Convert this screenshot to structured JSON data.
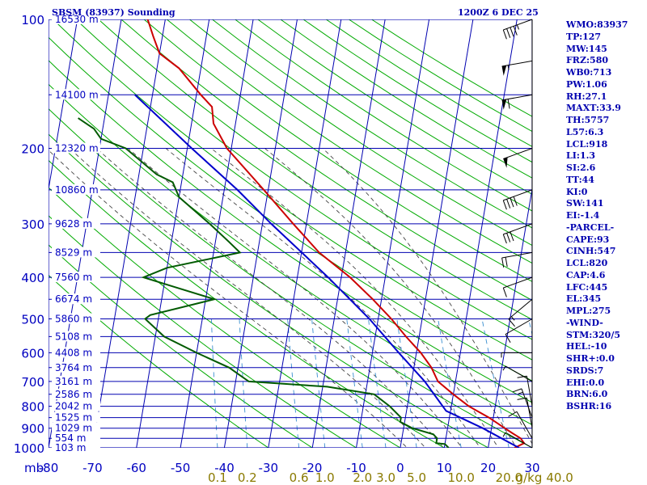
{
  "header": {
    "title": "SBSM (83937) Sounding",
    "time": "1200Z  6 DEC 25"
  },
  "stats": [
    "WMO:83937",
    "TP:127",
    "MW:145",
    "FRZ:580",
    "WB0:713",
    "PW:1.06",
    "RH:27.1",
    "MAXT:33.9",
    "TH:5757",
    "L57:6.3",
    "LCL:918",
    "LI:1.3",
    "SI:2.6",
    "TT:44",
    "KI:0",
    "SW:141",
    "EI:-1.4",
    "-PARCEL-",
    "CAPE:93",
    "CINH:547",
    "LCL:820",
    "CAP:4.6",
    "LFC:445",
    "EL:345",
    "MPL:275",
    "-WIND-",
    "STM:320/5",
    "HEL:-10",
    "SHR+:0.0",
    "SRDS:7",
    "EHI:0.0",
    "BRN:6.0",
    "BSHR:16"
  ],
  "chart_data": {
    "type": "line",
    "subtype": "skew-t log-p",
    "title": "SBSM (83937) Sounding",
    "x_unit_label": "mb",
    "pressure_levels": [
      100,
      200,
      300,
      400,
      500,
      600,
      700,
      800,
      900,
      1000
    ],
    "temperature_ticks": [
      -80,
      -70,
      -60,
      -50,
      -40,
      -30,
      -20,
      -10,
      0,
      10,
      20,
      30
    ],
    "mixing_ratio_labels": [
      "0.1",
      "0.2",
      "0.6",
      "1.0",
      "2.0",
      "3.0",
      "5.0",
      "10.0",
      "20.0",
      "40.0"
    ],
    "mixing_ratio_unit": "g/kg",
    "height_labels": [
      {
        "p": 100,
        "label": "16530 m"
      },
      {
        "p": 150,
        "label": "14100 m"
      },
      {
        "p": 200,
        "label": "12320 m"
      },
      {
        "p": 250,
        "label": "10860 m"
      },
      {
        "p": 300,
        "label": "9628 m"
      },
      {
        "p": 350,
        "label": "8529 m"
      },
      {
        "p": 400,
        "label": "7560 m"
      },
      {
        "p": 450,
        "label": "6674 m"
      },
      {
        "p": 500,
        "label": "5860 m"
      },
      {
        "p": 550,
        "label": "5108 m"
      },
      {
        "p": 600,
        "label": "4408 m"
      },
      {
        "p": 650,
        "label": "3764 m"
      },
      {
        "p": 700,
        "label": "3161 m"
      },
      {
        "p": 750,
        "label": "2586 m"
      },
      {
        "p": 800,
        "label": "2042 m"
      },
      {
        "p": 850,
        "label": "1525 m"
      },
      {
        "p": 900,
        "label": "1029 m"
      },
      {
        "p": 950,
        "label": "554 m"
      },
      {
        "p": 1000,
        "label": "103 m"
      }
    ],
    "series": [
      {
        "name": "Temperature",
        "color": "#cc0000",
        "points": [
          {
            "p": 1000,
            "t": 26
          },
          {
            "p": 975,
            "t": 28
          },
          {
            "p": 950,
            "t": 27
          },
          {
            "p": 925,
            "t": 25
          },
          {
            "p": 900,
            "t": 23
          },
          {
            "p": 850,
            "t": 19
          },
          {
            "p": 800,
            "t": 14
          },
          {
            "p": 750,
            "t": 10
          },
          {
            "p": 700,
            "t": 6
          },
          {
            "p": 650,
            "t": 4
          },
          {
            "p": 600,
            "t": 1
          },
          {
            "p": 550,
            "t": -3
          },
          {
            "p": 500,
            "t": -7
          },
          {
            "p": 450,
            "t": -12
          },
          {
            "p": 400,
            "t": -18
          },
          {
            "p": 350,
            "t": -26
          },
          {
            "p": 300,
            "t": -33
          },
          {
            "p": 250,
            "t": -41
          },
          {
            "p": 200,
            "t": -51
          },
          {
            "p": 175,
            "t": -55
          },
          {
            "p": 160,
            "t": -56
          },
          {
            "p": 150,
            "t": -59
          },
          {
            "p": 130,
            "t": -65
          },
          {
            "p": 120,
            "t": -70
          },
          {
            "p": 110,
            "t": -72
          },
          {
            "p": 100,
            "t": -74
          }
        ]
      },
      {
        "name": "Dewpoint",
        "color": "#005a00",
        "points": [
          {
            "p": 1000,
            "t": 11
          },
          {
            "p": 980,
            "t": 10
          },
          {
            "p": 975,
            "t": 8
          },
          {
            "p": 950,
            "t": 8
          },
          {
            "p": 930,
            "t": 7
          },
          {
            "p": 900,
            "t": 2
          },
          {
            "p": 870,
            "t": -1
          },
          {
            "p": 850,
            "t": -1
          },
          {
            "p": 800,
            "t": -4
          },
          {
            "p": 750,
            "t": -8
          },
          {
            "p": 720,
            "t": -19
          },
          {
            "p": 700,
            "t": -37
          },
          {
            "p": 680,
            "t": -39
          },
          {
            "p": 650,
            "t": -42
          },
          {
            "p": 600,
            "t": -50
          },
          {
            "p": 550,
            "t": -58
          },
          {
            "p": 500,
            "t": -63
          },
          {
            "p": 490,
            "t": -62
          },
          {
            "p": 450,
            "t": -48
          },
          {
            "p": 420,
            "t": -58
          },
          {
            "p": 400,
            "t": -65
          },
          {
            "p": 380,
            "t": -60
          },
          {
            "p": 350,
            "t": -44
          },
          {
            "p": 330,
            "t": -47
          },
          {
            "p": 300,
            "t": -52
          },
          {
            "p": 260,
            "t": -60
          },
          {
            "p": 240,
            "t": -62
          },
          {
            "p": 230,
            "t": -66
          },
          {
            "p": 200,
            "t": -74
          },
          {
            "p": 190,
            "t": -80
          },
          {
            "p": 180,
            "t": -82
          },
          {
            "p": 170,
            "t": -86
          }
        ]
      },
      {
        "name": "Parcel",
        "color": "#0000cc",
        "points": [
          {
            "p": 1000,
            "t": 27
          },
          {
            "p": 900,
            "t": 18
          },
          {
            "p": 820,
            "t": 9
          },
          {
            "p": 700,
            "t": 3
          },
          {
            "p": 600,
            "t": -4
          },
          {
            "p": 500,
            "t": -12
          },
          {
            "p": 400,
            "t": -23
          },
          {
            "p": 300,
            "t": -38
          },
          {
            "p": 250,
            "t": -47
          },
          {
            "p": 200,
            "t": -59
          },
          {
            "p": 150,
            "t": -74
          }
        ]
      }
    ],
    "wind_barbs": [
      {
        "p": 1000,
        "dir": 300,
        "spd": 5
      },
      {
        "p": 950,
        "dir": 330,
        "spd": 10
      },
      {
        "p": 900,
        "dir": 350,
        "spd": 10
      },
      {
        "p": 850,
        "dir": 340,
        "spd": 15
      },
      {
        "p": 800,
        "dir": 350,
        "spd": 10
      },
      {
        "p": 700,
        "dir": 300,
        "spd": 5
      },
      {
        "p": 600,
        "dir": 270,
        "spd": 5
      },
      {
        "p": 500,
        "dir": 240,
        "spd": 10
      },
      {
        "p": 450,
        "dir": 230,
        "spd": 15
      },
      {
        "p": 400,
        "dir": 250,
        "spd": 10
      },
      {
        "p": 350,
        "dir": 260,
        "spd": 20
      },
      {
        "p": 300,
        "dir": 250,
        "spd": 30
      },
      {
        "p": 250,
        "dir": 250,
        "spd": 40
      },
      {
        "p": 200,
        "dir": 250,
        "spd": 50
      },
      {
        "p": 150,
        "dir": 260,
        "spd": 60
      },
      {
        "p": 125,
        "dir": 260,
        "spd": 55
      },
      {
        "p": 100,
        "dir": 250,
        "spd": 45
      }
    ],
    "colors": {
      "isobar": "#0000b0",
      "isotherm": "#0000b0",
      "dry_adiabat": "#00aa00",
      "moist_adiabat": "#444444",
      "mixing_ratio": "#3a8fd0",
      "axis_label": "#0000c0",
      "mixing_label": "#8a7a00"
    }
  }
}
